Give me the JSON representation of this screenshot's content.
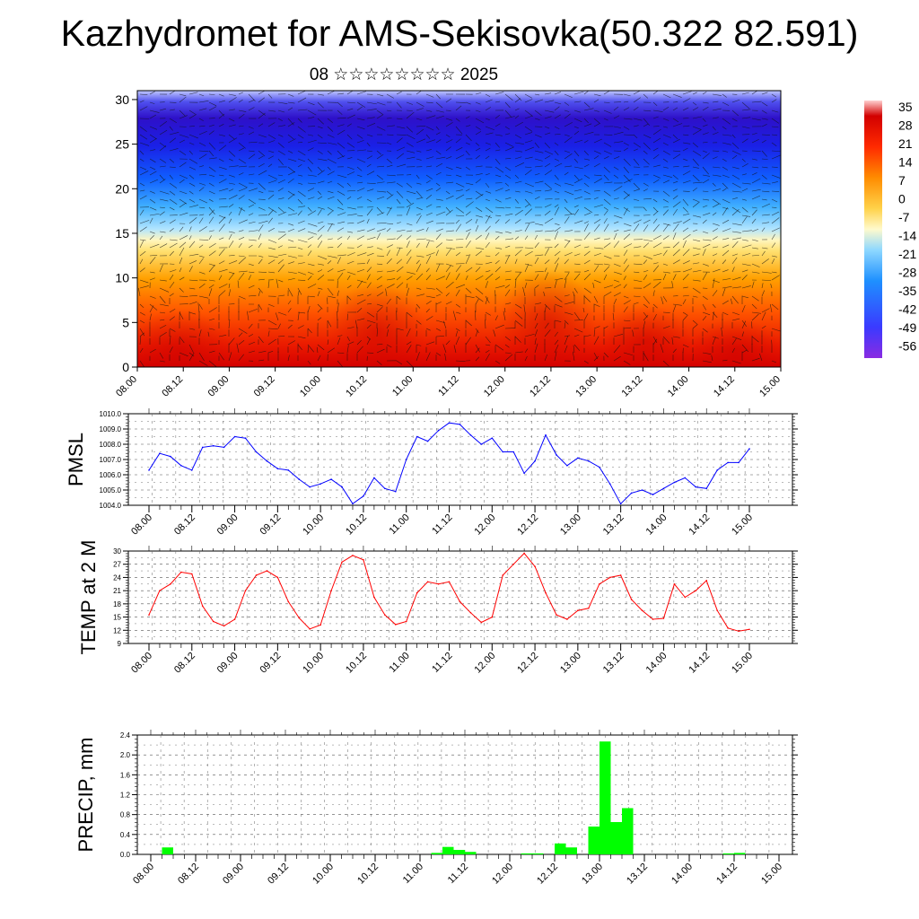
{
  "title": "Kazhydromet for AMS-Sekisovka(50.322 82.591)",
  "subtitle": "08 ☆☆☆☆☆☆☆☆ 2025",
  "time_labels": [
    "08.00",
    "08.12",
    "09.00",
    "09.12",
    "10.00",
    "10.12",
    "11.00",
    "11.12",
    "12.00",
    "12.12",
    "13.00",
    "13.12",
    "14.00",
    "14.12",
    "15.00"
  ],
  "colorbar": {
    "labels": [
      "35",
      "28",
      "21",
      "14",
      "7",
      "0",
      "-7",
      "-14",
      "-21",
      "-28",
      "-35",
      "-42",
      "-49",
      "-56"
    ]
  },
  "chart_data": [
    {
      "type": "heatmap",
      "name": "cross-section",
      "description_axis": "height",
      "ylim": [
        0,
        31
      ],
      "yticks": [
        0,
        5,
        10,
        15,
        20,
        25,
        30
      ],
      "x": [
        "08.00",
        "08.12",
        "09.00",
        "09.12",
        "10.00",
        "10.12",
        "11.00",
        "11.12",
        "12.00",
        "12.12",
        "13.00",
        "13.12",
        "14.00",
        "14.12",
        "15.00"
      ],
      "colorscale_range": [
        -60,
        38
      ],
      "overlay": "wind vectors"
    },
    {
      "type": "line",
      "ylabel": "PMSL",
      "ylim": [
        1004.0,
        1010.0
      ],
      "yticks": [
        1004.0,
        1005.0,
        1006.0,
        1007.0,
        1008.0,
        1009.0,
        1010.0
      ],
      "color": "#0000ff",
      "x_step_hours": 3,
      "values": [
        1006.3,
        1007.4,
        1007.2,
        1006.6,
        1006.3,
        1007.8,
        1007.9,
        1007.8,
        1008.5,
        1008.4,
        1007.5,
        1006.9,
        1006.4,
        1006.3,
        1005.7,
        1005.2,
        1005.4,
        1005.7,
        1005.2,
        1004.1,
        1004.6,
        1005.8,
        1005.1,
        1004.9,
        1007.0,
        1008.5,
        1008.2,
        1008.9,
        1009.4,
        1009.3,
        1008.6,
        1008.0,
        1008.4,
        1007.5,
        1007.5,
        1006.1,
        1006.9,
        1008.6,
        1007.3,
        1006.6,
        1007.1,
        1006.9,
        1006.5,
        1005.4,
        1004.1,
        1004.8,
        1005.0,
        1004.7,
        1005.1,
        1005.5,
        1005.8,
        1005.2,
        1005.1,
        1006.3,
        1006.8,
        1006.8,
        1007.7
      ]
    },
    {
      "type": "line",
      "ylabel": "TEMP at 2 M",
      "ylim": [
        9,
        30
      ],
      "yticks": [
        9,
        12,
        15,
        18,
        21,
        24,
        27,
        30
      ],
      "color": "#ff0000",
      "x_step_hours": 3,
      "values": [
        15.5,
        21.0,
        22.5,
        25.2,
        24.8,
        17.5,
        14.0,
        13.0,
        14.5,
        21.0,
        24.5,
        25.5,
        24.0,
        18.5,
        14.8,
        12.3,
        13.2,
        21.0,
        27.5,
        29.0,
        28.0,
        19.5,
        15.5,
        13.3,
        14.0,
        20.5,
        23.0,
        22.5,
        23.0,
        18.5,
        16.0,
        13.8,
        15.0,
        24.5,
        27.0,
        29.5,
        26.5,
        20.5,
        15.5,
        14.5,
        16.5,
        17.0,
        22.5,
        24.0,
        24.5,
        19.0,
        16.5,
        14.5,
        14.7,
        22.5,
        19.5,
        21.0,
        23.3,
        16.5,
        12.5,
        11.8,
        12.2
      ]
    },
    {
      "type": "bar",
      "ylabel": "PRECIP, mm",
      "ylim": [
        0,
        2.4
      ],
      "yticks": [
        0.0,
        0.4,
        0.8,
        1.2,
        1.6,
        2.0,
        2.4
      ],
      "color": "#00ff00",
      "x_step_hours": 3,
      "values": [
        0,
        0.14,
        0,
        0,
        0,
        0,
        0,
        0,
        0,
        0,
        0,
        0,
        0,
        0,
        0,
        0,
        0,
        0,
        0,
        0,
        0,
        0,
        0,
        0,
        0,
        0.03,
        0.15,
        0.09,
        0.05,
        0,
        0,
        0,
        0,
        0.02,
        0.02,
        0,
        0.22,
        0.14,
        0,
        0.56,
        2.27,
        0.65,
        0.93,
        0,
        0,
        0,
        0,
        0,
        0,
        0,
        0,
        0.02,
        0.03,
        0,
        0,
        0,
        0
      ]
    }
  ]
}
